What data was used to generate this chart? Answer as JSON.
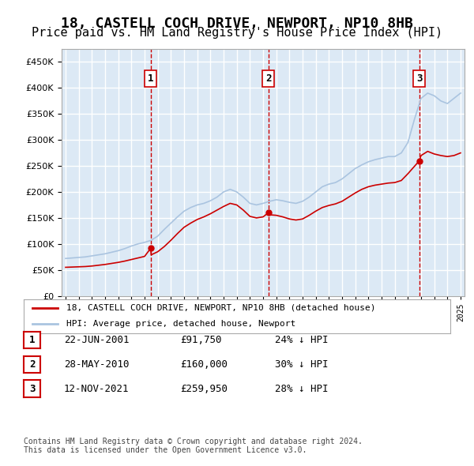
{
  "title": "18, CASTELL COCH DRIVE, NEWPORT, NP10 8HB",
  "subtitle": "Price paid vs. HM Land Registry's House Price Index (HPI)",
  "title_fontsize": 13,
  "subtitle_fontsize": 11,
  "background_color": "#ffffff",
  "plot_bg_color": "#dce9f5",
  "grid_color": "#ffffff",
  "ylim": [
    0,
    475000
  ],
  "yticks": [
    0,
    50000,
    100000,
    150000,
    200000,
    250000,
    300000,
    350000,
    400000,
    450000
  ],
  "xlabel": "",
  "ylabel": "",
  "hpi_color": "#aac4e0",
  "price_color": "#cc0000",
  "vline_color": "#cc0000",
  "sale_markers": [
    {
      "date_num": 2001.47,
      "price": 91750,
      "label": "1"
    },
    {
      "date_num": 2010.41,
      "price": 160000,
      "label": "2"
    },
    {
      "date_num": 2021.87,
      "price": 259950,
      "label": "3"
    }
  ],
  "legend_entries": [
    {
      "label": "18, CASTELL COCH DRIVE, NEWPORT, NP10 8HB (detached house)",
      "color": "#cc0000"
    },
    {
      "label": "HPI: Average price, detached house, Newport",
      "color": "#aac4e0"
    }
  ],
  "table_rows": [
    {
      "num": "1",
      "date": "22-JUN-2001",
      "price": "£91,750",
      "hpi": "24% ↓ HPI"
    },
    {
      "num": "2",
      "date": "28-MAY-2010",
      "price": "£160,000",
      "hpi": "30% ↓ HPI"
    },
    {
      "num": "3",
      "date": "12-NOV-2021",
      "price": "£259,950",
      "hpi": "28% ↓ HPI"
    }
  ],
  "footnote": "Contains HM Land Registry data © Crown copyright and database right 2024.\nThis data is licensed under the Open Government Licence v3.0.",
  "hpi_data": {
    "years": [
      1995,
      1995.5,
      1996,
      1996.5,
      1997,
      1997.5,
      1998,
      1998.5,
      1999,
      1999.5,
      2000,
      2000.5,
      2001,
      2001.5,
      2002,
      2002.5,
      2003,
      2003.5,
      2004,
      2004.5,
      2005,
      2005.5,
      2006,
      2006.5,
      2007,
      2007.5,
      2008,
      2008.5,
      2009,
      2009.5,
      2010,
      2010.5,
      2011,
      2011.5,
      2012,
      2012.5,
      2013,
      2013.5,
      2014,
      2014.5,
      2015,
      2015.5,
      2016,
      2016.5,
      2017,
      2017.5,
      2018,
      2018.5,
      2019,
      2019.5,
      2020,
      2020.5,
      2021,
      2021.5,
      2022,
      2022.5,
      2023,
      2023.5,
      2024,
      2024.5,
      2025
    ],
    "values": [
      72000,
      73000,
      74000,
      75000,
      77000,
      79000,
      81000,
      84000,
      87000,
      91000,
      96000,
      100000,
      103000,
      107000,
      115000,
      128000,
      140000,
      152000,
      163000,
      170000,
      175000,
      178000,
      183000,
      190000,
      200000,
      205000,
      200000,
      190000,
      178000,
      175000,
      178000,
      182000,
      185000,
      183000,
      180000,
      178000,
      182000,
      190000,
      200000,
      210000,
      215000,
      218000,
      225000,
      235000,
      245000,
      252000,
      258000,
      262000,
      265000,
      268000,
      268000,
      275000,
      295000,
      340000,
      380000,
      390000,
      385000,
      375000,
      370000,
      380000,
      390000
    ]
  },
  "price_data": {
    "years": [
      1995,
      1995.5,
      1996,
      1996.5,
      1997,
      1997.5,
      1998,
      1998.5,
      1999,
      1999.5,
      2000,
      2000.5,
      2001,
      2001.47,
      2001.5,
      2002,
      2002.5,
      2003,
      2003.5,
      2004,
      2004.5,
      2005,
      2005.5,
      2006,
      2006.5,
      2007,
      2007.5,
      2008,
      2008.5,
      2009,
      2009.5,
      2010,
      2010.41,
      2010.5,
      2011,
      2011.5,
      2012,
      2012.5,
      2013,
      2013.5,
      2014,
      2014.5,
      2015,
      2015.5,
      2016,
      2016.5,
      2017,
      2017.5,
      2018,
      2018.5,
      2019,
      2019.5,
      2020,
      2020.5,
      2021,
      2021.87,
      2021.9,
      2022,
      2022.5,
      2023,
      2023.5,
      2024,
      2024.5,
      2025
    ],
    "values": [
      55000,
      55500,
      56000,
      56500,
      57500,
      59000,
      60500,
      62500,
      64500,
      67000,
      70000,
      73000,
      76000,
      91750,
      79000,
      85000,
      95000,
      107000,
      120000,
      132000,
      140000,
      147000,
      152000,
      158000,
      165000,
      172000,
      178000,
      175000,
      165000,
      153000,
      150000,
      152000,
      160000,
      156000,
      155000,
      152000,
      148000,
      146000,
      148000,
      155000,
      163000,
      170000,
      174000,
      177000,
      182000,
      190000,
      198000,
      205000,
      210000,
      213000,
      215000,
      217000,
      218000,
      222000,
      235000,
      259950,
      262000,
      270000,
      278000,
      273000,
      270000,
      268000,
      270000,
      275000
    ]
  }
}
